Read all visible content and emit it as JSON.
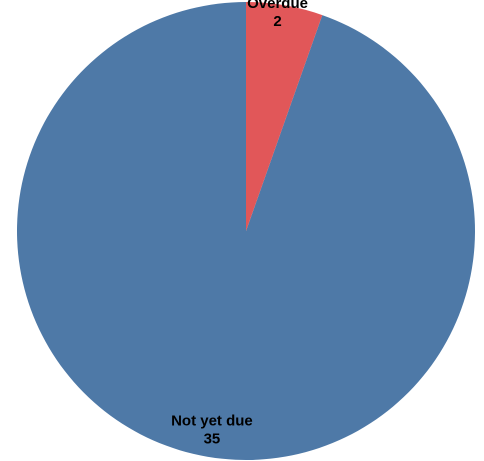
{
  "chart_data": {
    "type": "pie",
    "slices": [
      {
        "label": "Not yet due",
        "value": 35,
        "color": "#4E79A7"
      },
      {
        "label": "Overdue",
        "value": 2,
        "color": "#E15759"
      }
    ],
    "start": "top",
    "direction": "counterclockwise",
    "data_labels": "category-and-value",
    "legend": "none"
  }
}
